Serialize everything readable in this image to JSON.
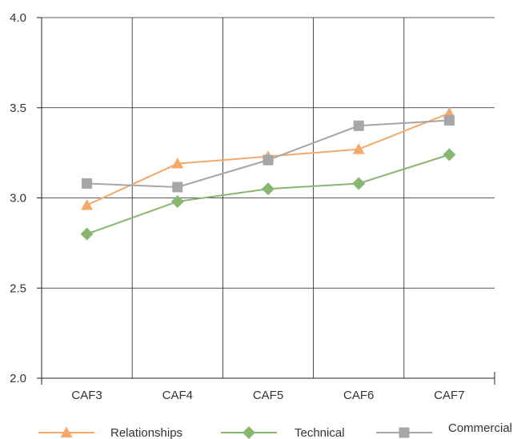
{
  "chart_data": {
    "type": "line",
    "categories": [
      "CAF3",
      "CAF4",
      "CAF5",
      "CAF6",
      "CAF7"
    ],
    "ylim": [
      2.0,
      4.0
    ],
    "yticks": [
      "2.0",
      "2.5",
      "3.0",
      "3.5",
      "4.0"
    ],
    "grid": true,
    "legend_position": "bottom",
    "series": [
      {
        "name": "Relationships",
        "color": "#f4a96a",
        "marker": "triangle",
        "values": [
          2.96,
          3.19,
          3.23,
          3.27,
          3.47
        ]
      },
      {
        "name": "Technical",
        "color": "#88b56f",
        "marker": "diamond",
        "values": [
          2.8,
          2.98,
          3.05,
          3.08,
          3.24
        ]
      },
      {
        "name": "Commercial",
        "color": "#a6a6a6",
        "marker": "square",
        "values": [
          3.08,
          3.06,
          3.21,
          3.4,
          3.43
        ]
      }
    ]
  }
}
